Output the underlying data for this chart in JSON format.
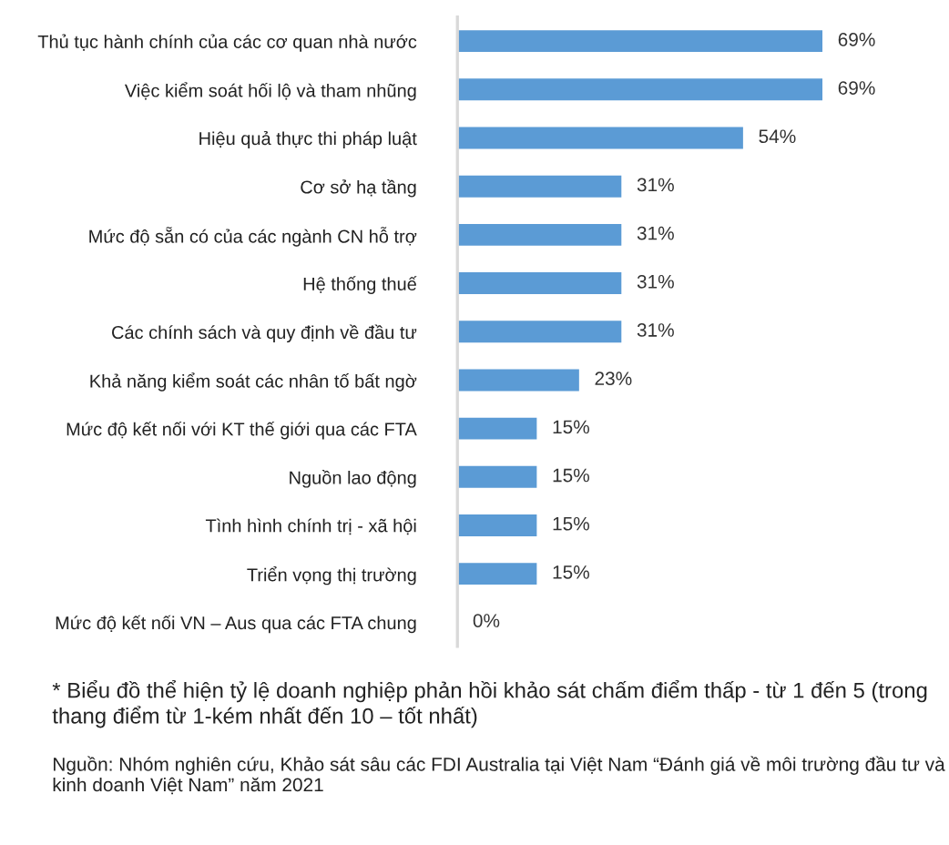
{
  "chart_data": {
    "type": "bar",
    "orientation": "horizontal",
    "categories": [
      "Thủ tục hành chính của các cơ quan nhà nước",
      "Việc kiểm soát hối lộ và tham nhũng",
      "Hiệu quả thực thi pháp luật",
      "Cơ sở hạ tầng",
      "Mức độ sẵn có của các ngành CN hỗ trợ",
      "Hệ thống thuế",
      "Các chính sách và quy định về đầu tư",
      "Khả năng kiểm soát các nhân tố bất ngờ",
      "Mức độ kết nối với KT thế giới qua các FTA",
      "Nguồn lao động",
      "Tình hình chính trị - xã hội",
      "Triển vọng thị trường",
      "Mức độ kết nối VN – Aus qua các FTA chung"
    ],
    "values": [
      69,
      69,
      54,
      31,
      31,
      31,
      31,
      23,
      15,
      15,
      15,
      15,
      0
    ],
    "value_labels": [
      "69%",
      "69%",
      "54%",
      "31%",
      "31%",
      "31%",
      "31%",
      "23%",
      "15%",
      "15%",
      "15%",
      "15%",
      "0%"
    ],
    "color": "#5b9bd5",
    "tick_labels": "y",
    "grid": false,
    "annotations": [
      "* Biểu đồ thể hiện tỷ lệ doanh nghiệp phản hồi khảo sát chấm điểm thấp - từ 1 đến 5 (trong thang điểm từ 1-kém nhất đến 10 – tốt nhất)",
      "Nguồn: Nhóm nghiên cứu, Khảo sát sâu các FDI Australia tại Việt Nam “Đánh giá về môi trường đầu tư và kinh doanh Việt Nam” năm 2021"
    ]
  }
}
